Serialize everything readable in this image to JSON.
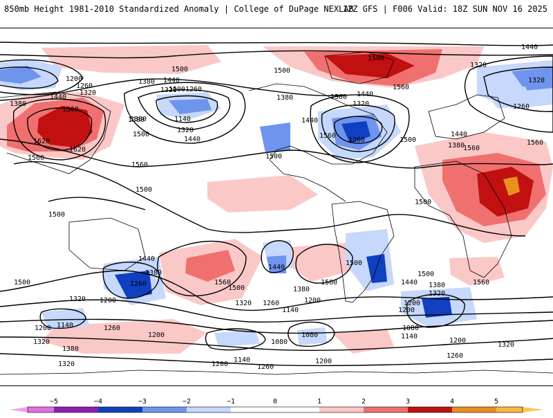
{
  "header": {
    "title": "850mb Height 1981-2010 Standardized Anomaly | College of DuPage NEXLAB",
    "run_info": "12Z GFS | F006 Valid: 18Z SUN NOV 16 2025"
  },
  "colors": {
    "anom_neg5": "#e070e0",
    "anom_neg4": "#8b1fb0",
    "anom_neg3": "#1040c0",
    "anom_neg2": "#6f94ee",
    "anom_neg1": "#c6d8fb",
    "anom_pos1": "#fbc8c8",
    "anom_pos2": "#f07070",
    "anom_pos3": "#c01010",
    "anom_pos4": "#e89020",
    "anom_pos5": "#f8b840"
  },
  "colorbar": {
    "ticks": [
      "−5",
      "−4",
      "−3",
      "−2",
      "−1",
      "0",
      "1",
      "2",
      "3",
      "4",
      "5"
    ]
  },
  "contour_labels": {
    "l1440_ne": "1440",
    "l1320_n": "1320",
    "l1500_n": "1500",
    "l1560_n": "1560",
    "l1200_a": "1200",
    "l1260_a": "1260",
    "l1320_a": "1320",
    "l1380_a": "1380",
    "l1440_b": "1440",
    "l1560_b": "1560",
    "l1620_b": "1620",
    "l1620_c": "1620",
    "l1560_c": "1560",
    "l1380_b": "1380",
    "l1500_b": "1500",
    "l1560_d": "1560",
    "l1500_c": "1500",
    "l1380_c": "1380",
    "l1440_c": "1440",
    "l1500_d": "1500",
    "l1320_b": "1320",
    "l1260_b": "1260",
    "l1380_d": "1380",
    "l1140_a": "1140",
    "l1320_c": "1320",
    "l1440_d": "1440",
    "l1500_e": "1500",
    "l1380_e": "1380",
    "l1440_e": "1440",
    "l1320_d": "1320",
    "l1260_c": "1260",
    "l1500_f": "1500",
    "l1440_f": "1440",
    "l1560_e": "1560",
    "l1500_g": "1500",
    "l1500_h": "1500",
    "l1500_i": "1500",
    "l1500_j": "1500",
    "l1440_g": "1440",
    "l1380_f": "1380",
    "l1260_d": "1260",
    "l1500_k": "1500",
    "l1320_e": "1320",
    "l1200_b": "1200",
    "l1440_h": "1440",
    "l1560_f": "1560",
    "l1500_l": "1500",
    "l1380_g": "1380",
    "l1320_f": "1320",
    "l1260_e": "1260",
    "l1200_c": "1200",
    "l1140_b": "1140",
    "l1560_g": "1560",
    "l1500_m": "1500",
    "l1440_i": "1440",
    "l1380_h": "1380",
    "l1320_g": "1320",
    "l1200_d": "1200",
    "l1080_a": "1080",
    "l1140_c": "1140",
    "l1560_h": "1560",
    "l1200_e": "1200",
    "l1140_d": "1140",
    "l1260_f": "1260",
    "l1200_f": "1200",
    "l1320_h": "1320",
    "l1380_i": "1380",
    "l1080_b": "1080",
    "l1080_c": "1080",
    "l1200_g": "1200",
    "l1140_e": "1140",
    "l1200_h": "1200",
    "l1260_g": "1260",
    "l1320_i": "1320",
    "l1200_i": "1200",
    "l1260_h": "1260",
    "l1320_j": "1320",
    "l1200_j": "1200"
  }
}
